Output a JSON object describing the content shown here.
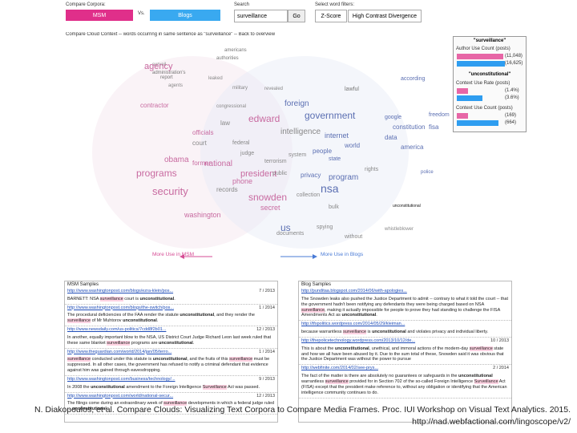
{
  "header": {
    "compare_label": "Compare Corpora:",
    "corpus_a": "MSM",
    "vs": "Vs.",
    "corpus_b": "Blogs",
    "search_label": "Search",
    "search_value": "surveillance",
    "go": "Go",
    "filters_label": "Select word filters:",
    "filter_1": "Z-Score",
    "filter_2": "High Contrast Divergence"
  },
  "cloud": {
    "title": "Compare Cloud Context -- words occurring in same sentence as \"surveillance\" -- Back to overview",
    "more_left": "More Use in MSM",
    "more_right": "More Use in Blogs",
    "words": [
      {
        "t": "americans",
        "c": "#777"
      },
      {
        "t": "authorities",
        "c": "#777"
      },
      {
        "t": "surveil",
        "c": "#888"
      },
      {
        "t": "administration's",
        "c": "#777"
      },
      {
        "t": "agency",
        "c": "#c86aa0"
      },
      {
        "t": "report",
        "c": "#777"
      },
      {
        "t": "agents",
        "c": "#888"
      },
      {
        "t": "congressional",
        "c": "#888"
      },
      {
        "t": "programs",
        "c": "#c86aa0"
      },
      {
        "t": "obama",
        "c": "#c86aa0"
      },
      {
        "t": "national",
        "c": "#c86aa0"
      },
      {
        "t": "security",
        "c": "#c86aa0"
      },
      {
        "t": "edward",
        "c": "#c86aa0"
      },
      {
        "t": "snowden",
        "c": "#c86aa0"
      },
      {
        "t": "president",
        "c": "#c86aa0"
      },
      {
        "t": "government",
        "c": "#5b6fb2"
      },
      {
        "t": "nsa",
        "c": "#5b6fb2"
      },
      {
        "t": "program",
        "c": "#5b6fb2"
      },
      {
        "t": "intelligence",
        "c": "#888"
      },
      {
        "t": "us",
        "c": "#5b6fb2"
      },
      {
        "t": "internet",
        "c": "#5b6fb2"
      },
      {
        "t": "foreign",
        "c": "#5b6fb2"
      },
      {
        "t": "secret",
        "c": "#c86aa0"
      },
      {
        "t": "phone",
        "c": "#c86aa0"
      },
      {
        "t": "washington",
        "c": "#c86aa0"
      },
      {
        "t": "records",
        "c": "#888"
      },
      {
        "t": "court",
        "c": "#888"
      },
      {
        "t": "law",
        "c": "#888"
      },
      {
        "t": "unconstitutional",
        "c": "#111"
      },
      {
        "t": "privacy",
        "c": "#5b6fb2"
      },
      {
        "t": "public",
        "c": "#888"
      },
      {
        "t": "people",
        "c": "#5b6fb2"
      },
      {
        "t": "state",
        "c": "#5b6fb2"
      },
      {
        "t": "system",
        "c": "#888"
      },
      {
        "t": "freedom",
        "c": "#5b6fb2"
      },
      {
        "t": "lawful",
        "c": "#777"
      },
      {
        "t": "data",
        "c": "#5b6fb2"
      },
      {
        "t": "world",
        "c": "#5b6fb2"
      },
      {
        "t": "without",
        "c": "#888"
      },
      {
        "t": "spying",
        "c": "#888"
      },
      {
        "t": "whistleblower",
        "c": "#888"
      },
      {
        "t": "constitution",
        "c": "#5b6fb2"
      },
      {
        "t": "according",
        "c": "#5b6fb2"
      },
      {
        "t": "officials",
        "c": "#c86aa0"
      },
      {
        "t": "former",
        "c": "#c86aa0"
      },
      {
        "t": "contractor",
        "c": "#c86aa0"
      },
      {
        "t": "federal",
        "c": "#888"
      },
      {
        "t": "judge",
        "c": "#888"
      },
      {
        "t": "documents",
        "c": "#888"
      },
      {
        "t": "leaked",
        "c": "#888"
      },
      {
        "t": "revealed",
        "c": "#888"
      },
      {
        "t": "google",
        "c": "#5b6fb2"
      },
      {
        "t": "fisa",
        "c": "#5b6fb2"
      },
      {
        "t": "terrorism",
        "c": "#888"
      },
      {
        "t": "bulk",
        "c": "#888"
      },
      {
        "t": "collection",
        "c": "#888"
      },
      {
        "t": "america",
        "c": "#5b6fb2"
      },
      {
        "t": "police",
        "c": "#5b6fb2"
      },
      {
        "t": "rights",
        "c": "#888"
      },
      {
        "t": "military",
        "c": "#888"
      }
    ]
  },
  "stats": {
    "term_1": "\"surveillance\"",
    "metric_1": "Author Use Count (posts)",
    "v1_a": "(11,048)",
    "v1_b": "(16,625)",
    "term_2": "\"unconstitutional\"",
    "metric_2": "Context Use Rate (posts)",
    "v2_a": "(1.4%)",
    "v2_b": "(3.6%)",
    "metric_3": "Context Use Count (posts)",
    "v3_a": "(169)",
    "v3_b": "(664)",
    "color_a": "#e766a6",
    "color_b": "#2e9df0"
  },
  "msm": {
    "title": "MSM Samples",
    "items": [
      {
        "url": "http://www.washingtonpost.com/blogs/ezra-klein/pos...",
        "date": "7 / 2013",
        "text": "BARNETT: NSA surveillance court is unconstitutional."
      },
      {
        "url": "http://www.washingtonpost.com/blogs/the-switch/pos...",
        "date": "1 / 2014",
        "text": "The procedural deficiencies of the FAA render the statute unconstitutional, and they render the surveillance of Mr Muhtorov unconstitutional."
      },
      {
        "url": "http://www.newsdaily.com/us-politics/7cdd8f2b01...",
        "date": "12 / 2013",
        "text": "In another, equally important blow to the NSA, US District Court Judge Richard Leon last week ruled that these same blanket surveillance programs are unconstitutional."
      },
      {
        "url": "http://www.theguardian.com/world/2014/jan/05/terro...",
        "date": "1 / 2014",
        "text": "surveillance conducted under this statute is unconstitutional, and the fruits of this surveillance must be suppressed. In all other cases, the government has refused to notify a criminal defendant that evidence against him was gained through eavesdropping."
      },
      {
        "url": "http://www.washingtonpost.com/business/technology/...",
        "date": "9 / 2013",
        "text": "In 2008 the unconstitutional amendment to the Foreign Intelligence Surveillance Act was passed."
      },
      {
        "url": "http://www.washingtonpost.com/world/national-secur...",
        "date": "12 / 2013",
        "text": "The filings come during an extraordinary week of surveillance developments in which a federal judge ruled ... unconstitutional."
      }
    ]
  },
  "blogs": {
    "title": "Blog Samples",
    "items": [
      {
        "url": "http://punditaa.blogspot.com/2014/06/with-apologies...",
        "date": "",
        "text": "The Snowden leaks also pushed the Justice Department to admit -- contrary to what it told the court -- that the government hadn't been notifying any defendants they were being charged based on NSA surveillance, making it actually impossible for people to prove they had standing to challenge the FISA Amendments Act as unconstitutional."
      },
      {
        "url": "http://tfspolitics.wordpress.com/2014/05/29/kleiman...",
        "date": "",
        "text": "because warrantless surveillance is unconstitutional and violates privacy and individual liberty."
      },
      {
        "url": "http://thepolicetechnology.wordpress.com/2013/10/12/de...",
        "date": "10 / 2013",
        "text": "This is about the unconstitutional, unethical, and immoral actions of the modern-day surveillance state and how we all have been abused by it. Due to the sum total of these, Snowden said it was obvious that the Justice Department was without the power to pursue"
      },
      {
        "url": "http://webfinite.com/2014/02/see-prys...",
        "date": "2 / 2014",
        "text": "The fact of the matter is there are absolutely no guarantees or safeguards in the unconstitutional warrantless surveillance provided for in Section 702 of the so-called Foreign Intelligence Surveillance Act (FISA) except that the president make reference to, without any obligation or identifying that the American intelligence community continues to do."
      }
    ]
  },
  "caption": {
    "line1": "N. Diakopoulos, et al. Compare Clouds: Visualizing Text Corpora to Compare Media Frames. Proc. IUI Workshop on Visual Text Analytics. 2015.",
    "line2": "http://nad.webfactional.com/lingoscope/v2/"
  }
}
